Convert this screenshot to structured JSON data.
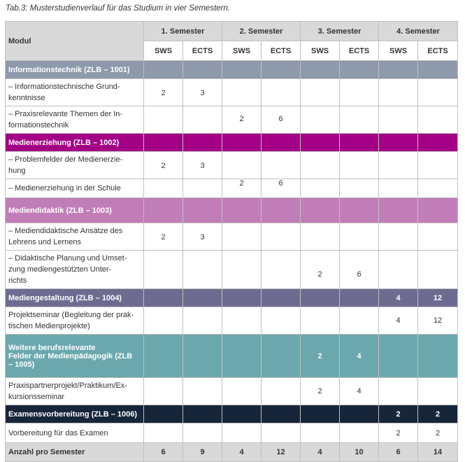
{
  "caption": "Tab.3: Musterstudienverlauf für das Studium in vier Semestern.",
  "header": {
    "modul": "Modul",
    "semesters": [
      "1. Semester",
      "2. Semester",
      "3. Semester",
      "4. Semester"
    ],
    "sws": "SWS",
    "ects": "ECTS"
  },
  "modules": [
    {
      "name": "Informationstechnik (ZLB – 1001)",
      "color": "#8e9aab",
      "values": [
        "",
        "",
        "",
        "",
        "",
        "",
        "",
        ""
      ],
      "items": [
        {
          "name_lines": [
            "– Informationstechnische Grund-",
            "kenntnisse"
          ],
          "values": [
            "2",
            "3",
            "",
            "",
            "",
            "",
            "",
            ""
          ]
        },
        {
          "name_lines": [
            "– Praxisrelevante Themen der In-",
            "formationstechnik"
          ],
          "values": [
            "",
            "",
            "2",
            "6",
            "",
            "",
            "",
            ""
          ]
        }
      ]
    },
    {
      "name": "Medienerziehung (ZLB – 1002)",
      "color": "#a30086",
      "values": [
        "",
        "",
        "",
        "",
        "",
        "",
        "",
        ""
      ],
      "items": [
        {
          "name_lines": [
            "– Problemfelder der Medienerzie-",
            "hung"
          ],
          "values": [
            "2",
            "3",
            "",
            "",
            "",
            "",
            "",
            ""
          ]
        },
        {
          "name_lines": [
            "– Medienerziehung in der Schule"
          ],
          "values": [
            "",
            "",
            "2",
            "6",
            "",
            "",
            "",
            ""
          ]
        }
      ]
    },
    {
      "name": "Mediendidaktik (ZLB – 1003)",
      "color": "#c17db8",
      "values": [
        "",
        "",
        "",
        "",
        "",
        "",
        "",
        ""
      ],
      "items": [
        {
          "name_lines": [
            "– Mediendidaktische Ansätze des",
            "Lehrens und Lernens"
          ],
          "values": [
            "2",
            "3",
            "",
            "",
            "",
            "",
            "",
            ""
          ]
        },
        {
          "name_lines": [
            "– Didaktische Planung und Umset-",
            "zung mediengestützten Unter-",
            "richts"
          ],
          "values": [
            "",
            "",
            "",
            "",
            "2",
            "6",
            "",
            ""
          ]
        }
      ]
    },
    {
      "name": "Mediengestaltung (ZLB – 1004)",
      "color": "#6d6c90",
      "values": [
        "",
        "",
        "",
        "",
        "",
        "",
        "4",
        "12"
      ],
      "items": [
        {
          "name_lines": [
            "Projektseminar (Begleitung der prak-",
            "tischen Medienprojekte)"
          ],
          "values": [
            "",
            "",
            "",
            "",
            "",
            "",
            "4",
            "12"
          ]
        }
      ]
    },
    {
      "name_lines": [
        "Weitere berufsrelevante",
        "Felder der Medienpädagogik (ZLB",
        "– 1005)"
      ],
      "color": "#6aa8ad",
      "values": [
        "",
        "",
        "",
        "",
        "2",
        "4",
        "",
        ""
      ],
      "items": [
        {
          "name_lines": [
            "Praxispartnerprojekt/Praktikum/Ex-",
            "kursionsseminar"
          ],
          "values": [
            "",
            "",
            "",
            "",
            "2",
            "4",
            "",
            ""
          ]
        }
      ]
    },
    {
      "name": "Examensvorbereitung (ZLB – 1006)",
      "color": "#17253a",
      "values": [
        "",
        "",
        "",
        "",
        "",
        "",
        "2",
        "2"
      ],
      "items": [
        {
          "name_lines": [
            "Vorbereitung für das Examen"
          ],
          "values": [
            "",
            "",
            "",
            "",
            "",
            "",
            "2",
            "2"
          ]
        }
      ]
    }
  ],
  "summary": {
    "label": "Anzahl pro Semester",
    "values": [
      "6",
      "9",
      "4",
      "12",
      "4",
      "10",
      "6",
      "14"
    ]
  }
}
